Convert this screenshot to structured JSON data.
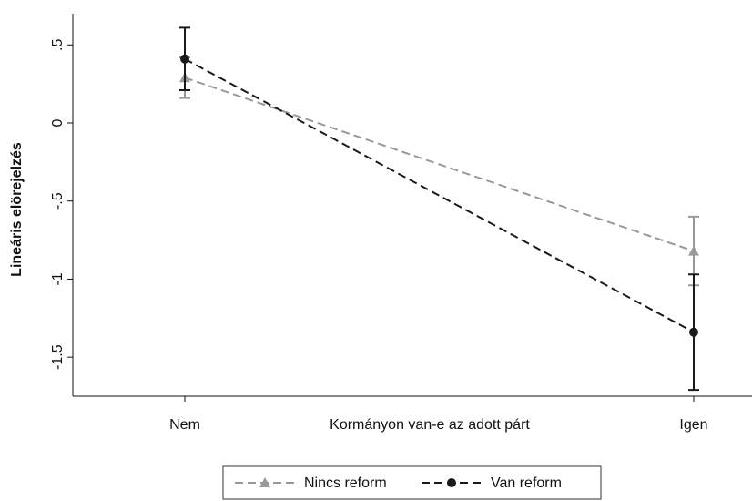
{
  "chart_data": {
    "type": "line",
    "xlabel": "Kormányon van-e az adott párt",
    "ylabel": "Lineáris elörejelzés",
    "categories": [
      "Nem",
      "Igen"
    ],
    "series": [
      {
        "name": "Nincs reform",
        "color": "#999999",
        "marker": "triangle",
        "values": [
          0.29,
          -0.82
        ],
        "errors": [
          0.13,
          0.22
        ]
      },
      {
        "name": "Van reform",
        "color": "#1a1a1a",
        "marker": "circle",
        "values": [
          0.41,
          -1.34
        ],
        "errors": [
          0.2,
          0.37
        ]
      }
    ],
    "ylim": [
      -1.75,
      0.7
    ],
    "yticks": [
      {
        "value": 0.5,
        "label": ".5"
      },
      0,
      {
        "value": -0.5,
        "label": "-.5"
      },
      -1,
      -1.5
    ],
    "legend": "bottom"
  }
}
